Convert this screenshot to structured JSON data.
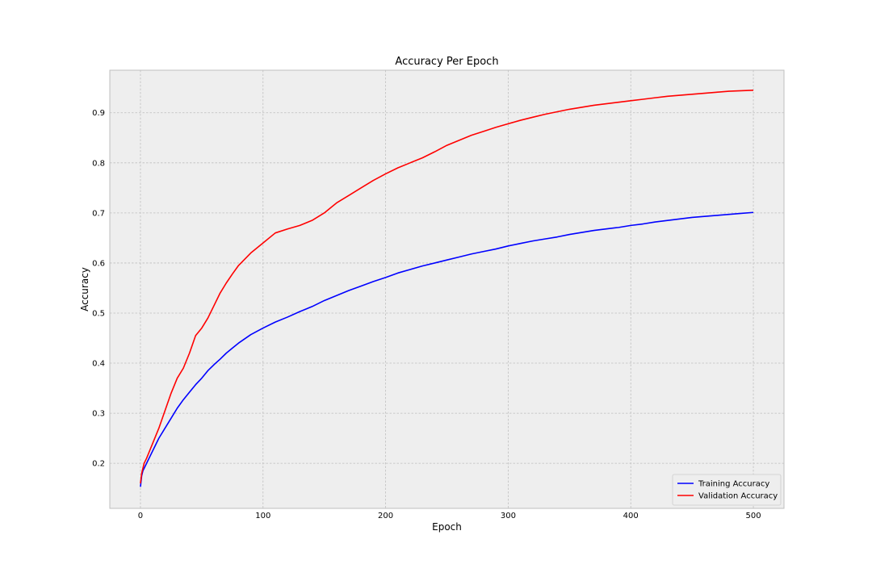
{
  "chart_data": {
    "type": "line",
    "title": "Accuracy Per Epoch",
    "xlabel": "Epoch",
    "ylabel": "Accuracy",
    "xlim": [
      -25,
      525
    ],
    "ylim": [
      0.11,
      0.985
    ],
    "xticks": [
      0,
      100,
      200,
      300,
      400,
      500
    ],
    "yticks": [
      0.2,
      0.3,
      0.4,
      0.5,
      0.6,
      0.7,
      0.8,
      0.9
    ],
    "xtick_labels": [
      "0",
      "100",
      "200",
      "300",
      "400",
      "500"
    ],
    "ytick_labels": [
      "0.2",
      "0.3",
      "0.4",
      "0.5",
      "0.6",
      "0.7",
      "0.8",
      "0.9"
    ],
    "grid": true,
    "legend_position": "lower-right",
    "colors": {
      "background": "#eeeeee",
      "grid": "#bfbfbf"
    },
    "x": [
      0,
      1,
      2,
      3,
      4,
      5,
      10,
      15,
      20,
      25,
      30,
      35,
      40,
      45,
      50,
      55,
      60,
      65,
      70,
      75,
      80,
      90,
      100,
      110,
      120,
      130,
      140,
      150,
      160,
      170,
      180,
      190,
      200,
      210,
      220,
      230,
      240,
      250,
      260,
      270,
      280,
      290,
      300,
      310,
      320,
      330,
      340,
      350,
      360,
      370,
      380,
      390,
      400,
      410,
      420,
      430,
      440,
      450,
      460,
      470,
      480,
      490,
      500
    ],
    "series": [
      {
        "name": "Training Accuracy",
        "color": "#0000ff",
        "values": [
          0.153,
          0.175,
          0.185,
          0.19,
          0.195,
          0.2,
          0.225,
          0.25,
          0.27,
          0.29,
          0.31,
          0.327,
          0.342,
          0.357,
          0.37,
          0.385,
          0.397,
          0.408,
          0.42,
          0.43,
          0.44,
          0.457,
          0.47,
          0.482,
          0.492,
          0.503,
          0.513,
          0.525,
          0.535,
          0.545,
          0.554,
          0.563,
          0.571,
          0.58,
          0.587,
          0.594,
          0.6,
          0.606,
          0.612,
          0.618,
          0.623,
          0.628,
          0.634,
          0.639,
          0.644,
          0.648,
          0.652,
          0.657,
          0.661,
          0.665,
          0.668,
          0.671,
          0.675,
          0.678,
          0.682,
          0.685,
          0.688,
          0.691,
          0.693,
          0.695,
          0.697,
          0.699,
          0.701
        ]
      },
      {
        "name": "Validation Accuracy",
        "color": "#ff0000",
        "values": [
          0.16,
          0.18,
          0.19,
          0.2,
          0.205,
          0.21,
          0.24,
          0.27,
          0.305,
          0.34,
          0.37,
          0.39,
          0.42,
          0.455,
          0.47,
          0.49,
          0.515,
          0.54,
          0.56,
          0.578,
          0.595,
          0.62,
          0.64,
          0.66,
          0.668,
          0.675,
          0.685,
          0.7,
          0.72,
          0.735,
          0.75,
          0.765,
          0.778,
          0.79,
          0.8,
          0.81,
          0.822,
          0.835,
          0.845,
          0.855,
          0.863,
          0.871,
          0.878,
          0.885,
          0.891,
          0.897,
          0.902,
          0.907,
          0.911,
          0.915,
          0.918,
          0.921,
          0.924,
          0.927,
          0.93,
          0.933,
          0.935,
          0.937,
          0.939,
          0.941,
          0.943,
          0.944,
          0.945
        ]
      }
    ]
  }
}
